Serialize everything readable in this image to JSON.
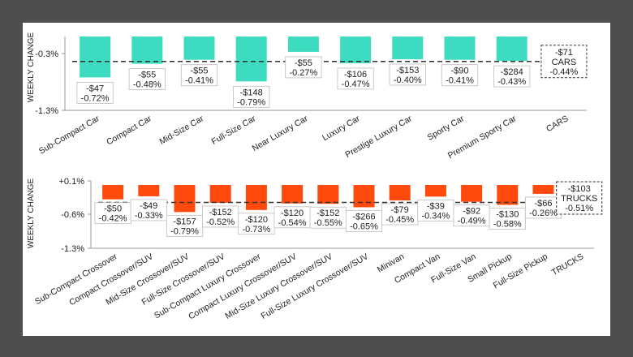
{
  "chart_data": [
    {
      "type": "bar",
      "title": "",
      "ylabel": "WEEKLY CHANGE",
      "ylim": [
        -1.3,
        0.1
      ],
      "yticks": [
        "-0.3%",
        "-1.3%"
      ],
      "ytick_values": [
        -0.3,
        -1.3
      ],
      "bar_color": "#3ddbbf",
      "categories": [
        "Sub-Compact Car",
        "Compact Car",
        "Mid-Size Car",
        "Full-Size Car",
        "Near Luxury Car",
        "Luxury Car",
        "Prestige Luxury Car",
        "Sporty Car",
        "Premium Sporty Car"
      ],
      "values": [
        -0.72,
        -0.48,
        -0.41,
        -0.79,
        -0.27,
        -0.47,
        -0.4,
        -0.41,
        -0.43
      ],
      "dollar_labels": [
        "-$47",
        "-$55",
        "-$55",
        "-$148",
        "-$55",
        "-$106",
        "-$153",
        "-$90",
        "-$284"
      ],
      "pct_labels": [
        "-0.72%",
        "-0.48%",
        "-0.41%",
        "-0.79%",
        "-0.27%",
        "-0.47%",
        "-0.40%",
        "-0.41%",
        "-0.43%"
      ],
      "total": {
        "label": "CARS",
        "value": -0.44,
        "dollar": "-$71",
        "pct": "-0.44%"
      }
    },
    {
      "type": "bar",
      "title": "",
      "ylabel": "WEEKLY CHANGE",
      "ylim": [
        -1.3,
        0.1
      ],
      "yticks": [
        "+0.1%",
        "-0.6%",
        "-1.3%"
      ],
      "ytick_values": [
        0.1,
        -0.6,
        -1.3
      ],
      "bar_color": "#ff4a0e",
      "categories": [
        "Sub-Compact Crossover",
        "Compact Crossover/SUV",
        "Mid-Size Crossover/SUV",
        "Full-Size Crossover/SUV",
        "Sub-Compact Luxury Crossover",
        "Compact Luxury Crossover/SUV",
        "Mid-Size Luxury Crossover/SUV",
        "Full-Size Luxury Crossover/SUV",
        "Minivan",
        "Compact Van",
        "Full-Size Van",
        "Small Pickup",
        "Full-Size Pickup"
      ],
      "values": [
        -0.42,
        -0.33,
        -0.79,
        -0.52,
        -0.73,
        -0.54,
        -0.55,
        -0.65,
        -0.45,
        -0.34,
        -0.49,
        -0.58,
        -0.26
      ],
      "dollar_labels": [
        "-$50",
        "-$49",
        "-$157",
        "-$152",
        "-$120",
        "-$120",
        "-$152",
        "-$266",
        "-$79",
        "-$39",
        "-$92",
        "-$130",
        "-$66"
      ],
      "pct_labels": [
        "-0.42%",
        "-0.33%",
        "-0.79%",
        "-0.52%",
        "-0.73%",
        "-0.54%",
        "-0.55%",
        "-0.65%",
        "-0.45%",
        "-0.34%",
        "-0.49%",
        "-0.58%",
        "-0.26%"
      ],
      "total": {
        "label": "TRUCKS",
        "value": -0.51,
        "dollar": "-$103",
        "pct": "-0.51%"
      }
    }
  ]
}
